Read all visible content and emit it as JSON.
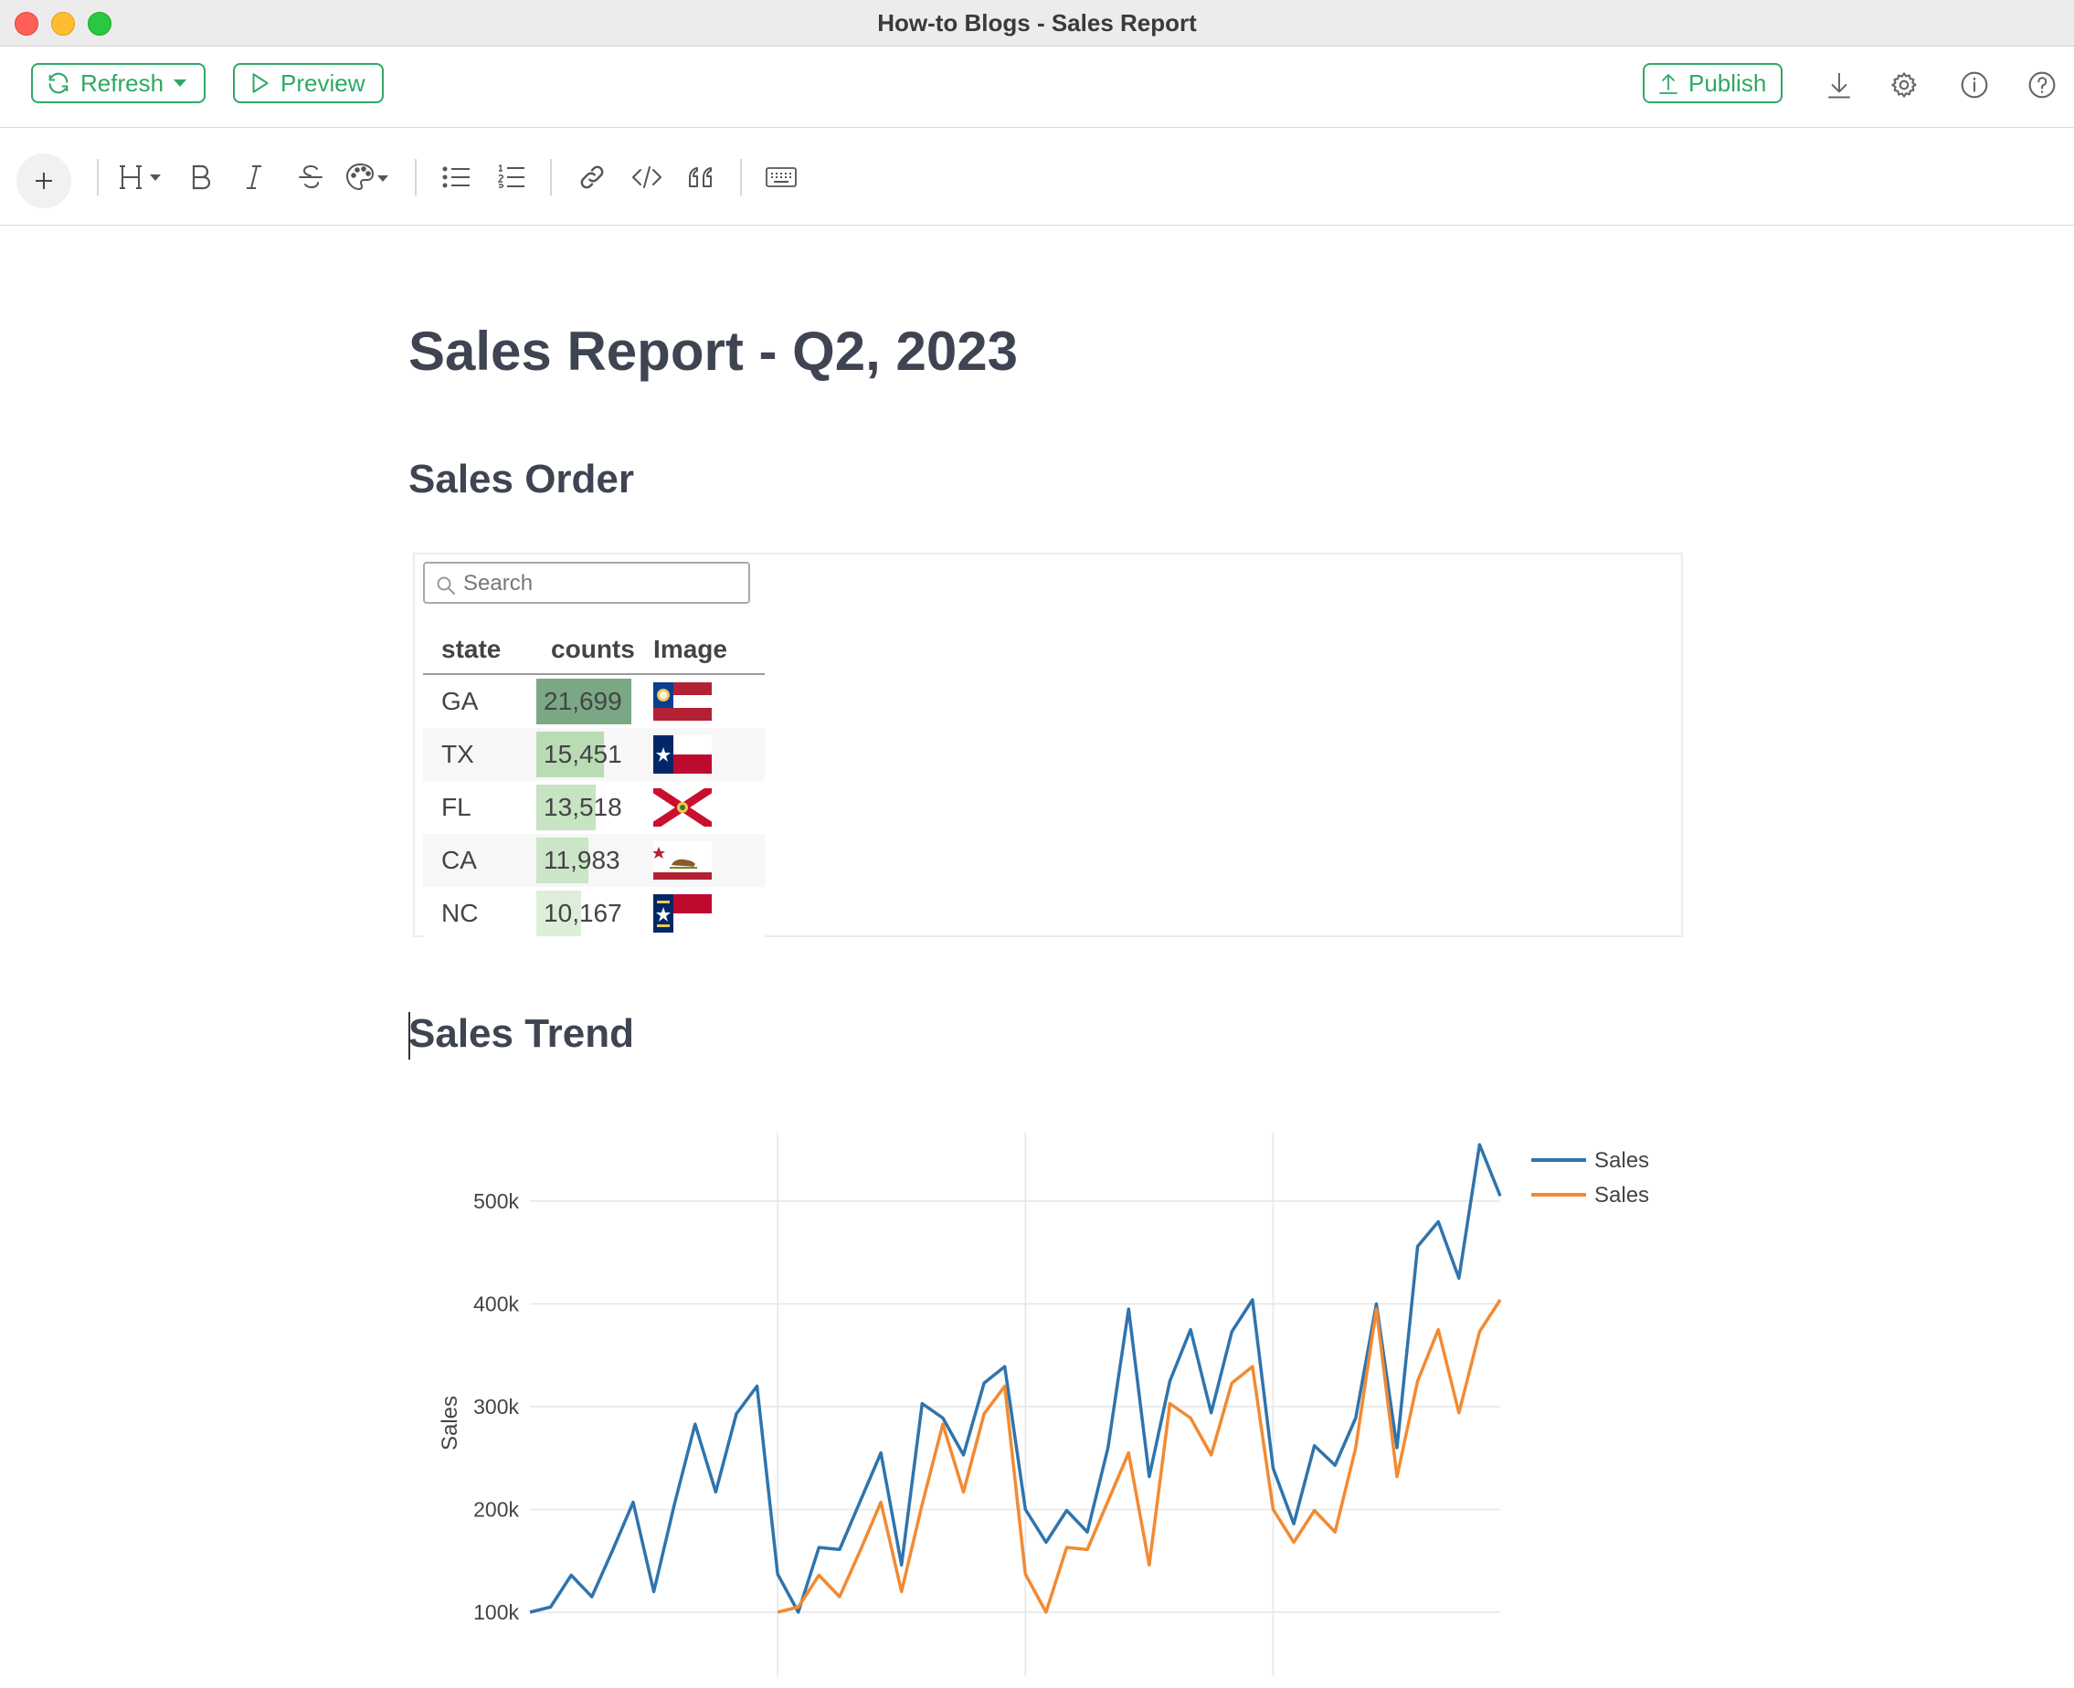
{
  "window": {
    "title": "How-to Blogs - Sales Report"
  },
  "toolbar": {
    "refresh_label": "Refresh",
    "preview_label": "Preview",
    "publish_label": "Publish"
  },
  "document": {
    "title": "Sales Report - Q2, 2023",
    "section_order": "Sales Order",
    "section_trend": "Sales Trend"
  },
  "table": {
    "search_placeholder": "Search",
    "headers": [
      "state",
      "counts",
      "Image"
    ],
    "rows": [
      {
        "state": "GA",
        "counts": "21,699",
        "value": 21699,
        "bar_color": "#7aa884",
        "flag": "georgia-flag"
      },
      {
        "state": "TX",
        "counts": "15,451",
        "value": 15451,
        "bar_color": "#b9dcb5",
        "flag": "texas-flag"
      },
      {
        "state": "FL",
        "counts": "13,518",
        "value": 13518,
        "bar_color": "#c6e3c2",
        "flag": "florida-flag"
      },
      {
        "state": "CA",
        "counts": "11,983",
        "value": 11983,
        "bar_color": "#cbe6c7",
        "flag": "california-flag"
      },
      {
        "state": "NC",
        "counts": "10,167",
        "value": 10167,
        "bar_color": "#ddefd9",
        "flag": "north-carolina-flag"
      }
    ]
  },
  "colors": {
    "accent": "#2fa866",
    "series_blue": "#2f74ad",
    "series_orange": "#f28a32"
  },
  "chart_data": {
    "type": "line",
    "ylabel": "Sales",
    "ylim": [
      100000,
      560000
    ],
    "yticks": [
      100000,
      200000,
      300000,
      400000,
      500000
    ],
    "ytick_labels": [
      "100k",
      "200k",
      "300k",
      "400k",
      "500k"
    ],
    "x": [
      0,
      1,
      2,
      3,
      4,
      5,
      6,
      7,
      8,
      9,
      10,
      11,
      12,
      13,
      14,
      15,
      16,
      17,
      18,
      19,
      20,
      21,
      22,
      23,
      24,
      25,
      26,
      27,
      28,
      29,
      30,
      31,
      32,
      33,
      34,
      35,
      36,
      37,
      38,
      39,
      40,
      41,
      42,
      43,
      44,
      45,
      46,
      47
    ],
    "legend_position": "top-right",
    "grid": true,
    "series": [
      {
        "name": "Sales",
        "color": "#2f74ad",
        "x": [
          0,
          1,
          2,
          3,
          4,
          5,
          6,
          7,
          8,
          9,
          10,
          11,
          12,
          13,
          14,
          15,
          16,
          17,
          18,
          19,
          20,
          21,
          22,
          23,
          24,
          25,
          26,
          27,
          28,
          29,
          30,
          31,
          32,
          33,
          34,
          35,
          36,
          37,
          38,
          39,
          40,
          41,
          42,
          43,
          44,
          45,
          46,
          47
        ],
        "values": [
          100000,
          105000,
          136000,
          115000,
          160000,
          207000,
          120000,
          205000,
          283000,
          217000,
          293000,
          320000,
          137000,
          100000,
          163000,
          161000,
          208000,
          255000,
          146000,
          303000,
          289000,
          253000,
          323000,
          339000,
          200000,
          168000,
          199000,
          178000,
          260000,
          395000,
          232000,
          325000,
          375000,
          294000,
          373000,
          404000,
          240000,
          186000,
          262000,
          243000,
          289000,
          400000,
          260000,
          456000,
          480000,
          425000,
          555000,
          505000
        ]
      },
      {
        "name": "Sales",
        "color": "#f28a32",
        "x": [
          12,
          13,
          14,
          15,
          16,
          17,
          18,
          19,
          20,
          21,
          22,
          23,
          24,
          25,
          26,
          27,
          28,
          29,
          30,
          31,
          32,
          33,
          34,
          35,
          36,
          37,
          38,
          39,
          40,
          41,
          42,
          43,
          44,
          45,
          46,
          47
        ],
        "values": [
          100000,
          105000,
          136000,
          115000,
          160000,
          207000,
          120000,
          205000,
          283000,
          217000,
          293000,
          320000,
          137000,
          100000,
          163000,
          161000,
          208000,
          255000,
          146000,
          303000,
          289000,
          253000,
          323000,
          339000,
          200000,
          168000,
          199000,
          178000,
          260000,
          395000,
          232000,
          325000,
          375000,
          294000,
          373000,
          404000
        ]
      }
    ]
  }
}
